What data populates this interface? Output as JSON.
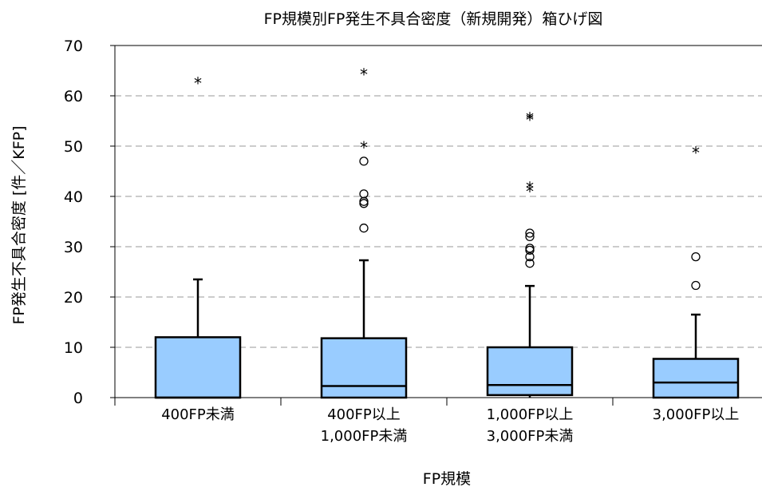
{
  "chart_data": {
    "type": "boxplot",
    "title": "FP規模別FP発生不具合密度（新規開発）箱ひげ図",
    "xlabel": "FP規模",
    "ylabel": "FP発生不具合密度 [件／KFP]",
    "ylim": [
      0,
      70
    ],
    "yticks": [
      0,
      10,
      20,
      30,
      40,
      50,
      60,
      70
    ],
    "grid": "horizontal-dashed",
    "box_color": "#99ccff",
    "categories": [
      [
        "400FP未満"
      ],
      [
        "400FP以上",
        "1,000FP未満"
      ],
      [
        "1,000FP以上",
        "3,000FP未満"
      ],
      [
        "3,000FP以上"
      ]
    ],
    "boxes": [
      {
        "whisker_low": 0,
        "q1": 0,
        "median": 0,
        "q3": 12.0,
        "whisker_high": 23.5,
        "outliers": [],
        "extremes": [
          62.8
        ]
      },
      {
        "whisker_low": 0,
        "q1": 0,
        "median": 2.3,
        "q3": 11.8,
        "whisker_high": 27.3,
        "outliers": [
          33.7,
          38.6,
          39.0,
          40.5,
          47.0
        ],
        "extremes": [
          50.0,
          64.5
        ]
      },
      {
        "whisker_low": 0,
        "q1": 0.5,
        "median": 2.5,
        "q3": 10.0,
        "whisker_high": 22.2,
        "outliers": [
          26.7,
          28.0,
          29.3,
          29.7,
          32.0,
          32.7
        ],
        "extremes": [
          41.3,
          42.0,
          55.5,
          55.8
        ]
      },
      {
        "whisker_low": 0,
        "q1": 0,
        "median": 3.0,
        "q3": 7.7,
        "whisker_high": 16.5,
        "outliers": [
          22.3,
          28.0
        ],
        "extremes": [
          49.0
        ]
      }
    ]
  }
}
